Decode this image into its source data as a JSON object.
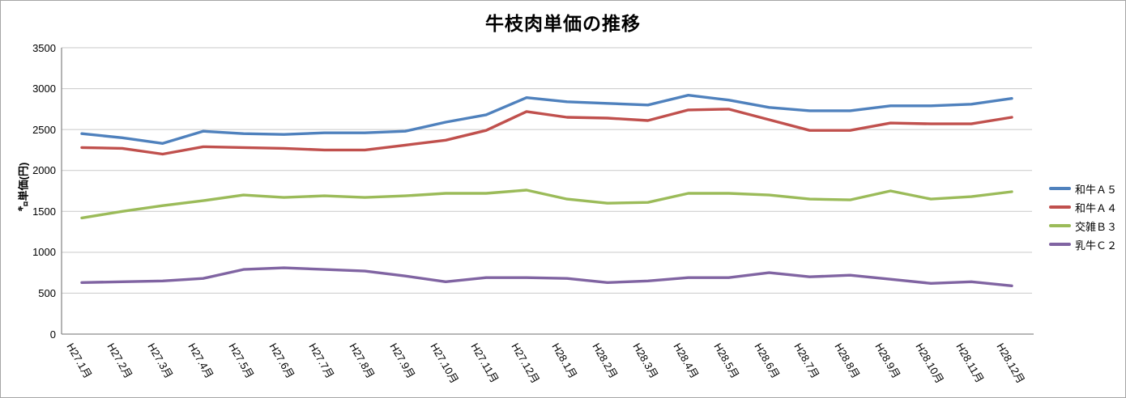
{
  "chart_data": {
    "type": "line",
    "title": "牛枝肉単価の推移",
    "ylabel": "㌔単価(円)",
    "xlabel": "",
    "ylim": [
      0,
      3500
    ],
    "yticks": [
      0,
      500,
      1000,
      1500,
      2000,
      2500,
      3000,
      3500
    ],
    "grid": true,
    "legend_position": "right",
    "categories": [
      "H27.1月",
      "H27.2月",
      "H27.3月",
      "H27.4月",
      "H27.5月",
      "H27.6月",
      "H27.7月",
      "H27.8月",
      "H27.9月",
      "H27.10月",
      "H27.11月",
      "H27.12月",
      "H28.1月",
      "H28.2月",
      "H28.3月",
      "H28.4月",
      "H28.5月",
      "H28.6月",
      "H28.7月",
      "H28.8月",
      "H28.9月",
      "H28.10月",
      "H28.11月",
      "H28.12月"
    ],
    "series": [
      {
        "name": "和牛Ａ５",
        "color": "#4F81BD",
        "values": [
          2450,
          2400,
          2330,
          2480,
          2450,
          2440,
          2460,
          2460,
          2480,
          2590,
          2680,
          2890,
          2840,
          2820,
          2800,
          2920,
          2860,
          2770,
          2730,
          2730,
          2790,
          2790,
          2810,
          2880
        ]
      },
      {
        "name": "和牛Ａ４",
        "color": "#C0504D",
        "values": [
          2280,
          2270,
          2200,
          2290,
          2280,
          2270,
          2250,
          2250,
          2310,
          2370,
          2490,
          2720,
          2650,
          2640,
          2610,
          2740,
          2750,
          2620,
          2490,
          2490,
          2580,
          2570,
          2570,
          2650
        ]
      },
      {
        "name": "交雑Ｂ３",
        "color": "#9BBB59",
        "values": [
          1420,
          1500,
          1570,
          1630,
          1700,
          1670,
          1690,
          1670,
          1690,
          1720,
          1720,
          1760,
          1650,
          1600,
          1610,
          1720,
          1720,
          1700,
          1650,
          1640,
          1750,
          1650,
          1680,
          1740
        ]
      },
      {
        "name": "乳牛Ｃ２",
        "color": "#8064A2",
        "values": [
          630,
          640,
          650,
          680,
          790,
          810,
          790,
          770,
          710,
          640,
          690,
          690,
          680,
          630,
          650,
          690,
          690,
          750,
          700,
          720,
          670,
          620,
          640,
          590
        ]
      }
    ]
  }
}
